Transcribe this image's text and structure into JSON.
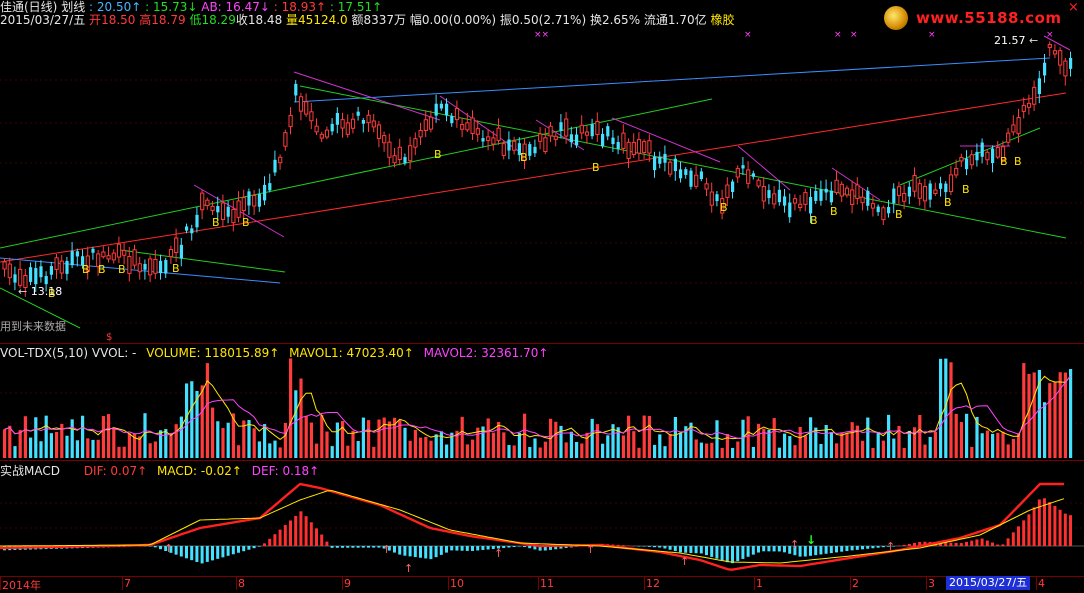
{
  "header": {
    "title_name": "佳通(日线)",
    "title_sub": "划线",
    "v1": ": 20.50↑",
    "v2": ": 15.73↓",
    "ab": "AB: 16.47↓",
    "v3": ": 18.93↑",
    "v4": ": 17.51↑",
    "date": "2015/03/27/五",
    "open_label": "开",
    "open": "18.50",
    "high_label": "高",
    "high": "18.79",
    "low_label": "低",
    "low": "18.29",
    "close_label": "收",
    "close": "18.48",
    "vol_label": "量",
    "vol": "45124.0",
    "amount": "额8337万",
    "change": "幅0.00(0.00%)",
    "amp": "振0.50(2.71%)",
    "turnover": "换2.65%",
    "float": "流通1.70亿",
    "sector": "橡胶"
  },
  "logo": {
    "text": "www.55188.com"
  },
  "annotations": {
    "high_price": "21.57",
    "low_price": "13.18",
    "future_note": "用到未来数据",
    "b_mark": "B"
  },
  "volume_panel": {
    "name": "VOL-TDX(5,10)",
    "vvol": "VVOL: -",
    "volume": "VOLUME: 118015.89↑",
    "mavol1": "MAVOL1: 47023.40↑",
    "mavol2": "MAVOL2: 32361.70↑"
  },
  "macd_panel": {
    "name": "实战MACD",
    "dif": "DIF: 0.07↑",
    "macd": "MACD: -0.02↑",
    "def": "DEF: 0.18↑"
  },
  "x_axis": {
    "labels": [
      "2014年",
      "7",
      "8",
      "9",
      "10",
      "11",
      "12",
      "1",
      "2",
      "3",
      "4"
    ],
    "current_date": "2015/03/27/五"
  },
  "colors": {
    "up": "#ff3b3b",
    "down": "#44e0ff",
    "background": "#000000",
    "separator": "#7a0000",
    "ma_yellow": "#ffe600",
    "ma_magenta": "#ff44ff"
  }
}
